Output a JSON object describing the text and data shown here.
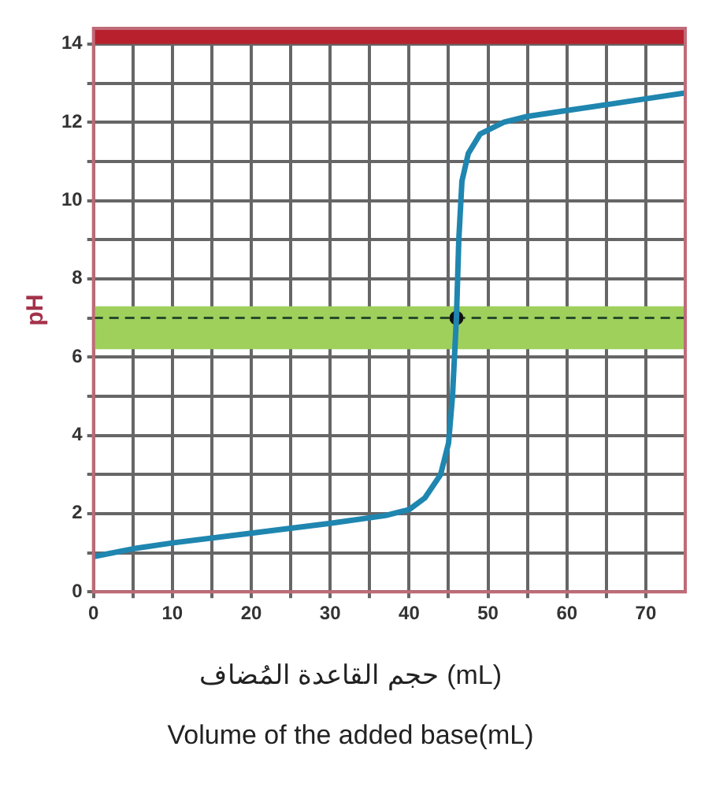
{
  "chart_data": {
    "type": "line",
    "xlabel": "حجم القاعدة المُضاف (mL)\nVolume of the added base(mL)",
    "ylabel": "pH",
    "series": [
      {
        "color": "#1f86b0",
        "marker": "none",
        "x": [
          0,
          5,
          10,
          20,
          30,
          37,
          40,
          42,
          44,
          45,
          45.5,
          46,
          46.3,
          46.7,
          47.5,
          49,
          52,
          55,
          60,
          65,
          70,
          75
        ],
        "values": [
          0.9,
          1.1,
          1.25,
          1.5,
          1.75,
          1.95,
          2.1,
          2.4,
          3,
          3.8,
          5,
          7,
          9,
          10.5,
          11.2,
          11.7,
          12,
          12.15,
          12.3,
          12.45,
          12.6,
          12.75
        ]
      },
      {
        "type": "scatter",
        "color": "#111111",
        "marker": "circle",
        "x": [
          46
        ],
        "values": [
          7
        ]
      }
    ],
    "xlim": [
      0,
      75
    ],
    "ylim": [
      0,
      14.4
    ],
    "xticks": [
      0,
      {
        "value": 5,
        "label": null
      },
      10,
      {
        "value": 15,
        "label": null
      },
      20,
      {
        "value": 25,
        "label": null
      },
      30,
      {
        "value": 35,
        "label": null
      },
      40,
      {
        "value": 45,
        "label": null
      },
      50,
      {
        "value": 55,
        "label": null
      },
      60,
      {
        "value": 65,
        "label": null
      },
      70
    ],
    "yticks": [
      0,
      {
        "value": 1,
        "label": null
      },
      2,
      {
        "value": 3,
        "label": null
      },
      4,
      {
        "value": 5,
        "label": null
      },
      6,
      {
        "value": 7,
        "label": null
      },
      8,
      {
        "value": 9,
        "label": null
      },
      10,
      {
        "value": 11,
        "label": null
      },
      12,
      {
        "value": 13,
        "label": null
      },
      14
    ],
    "grid": true,
    "legend": false,
    "bands": [
      {
        "axis": "y",
        "from": 6.2,
        "to": 7.3,
        "color": "#9fd05c"
      },
      {
        "axis": "y",
        "from": 14,
        "to": 14.4,
        "color": "#b8202e"
      }
    ],
    "ref_lines": [
      {
        "axis": "y",
        "value": 7,
        "color": "#2a4a2a",
        "line_style": "dashed"
      }
    ]
  }
}
